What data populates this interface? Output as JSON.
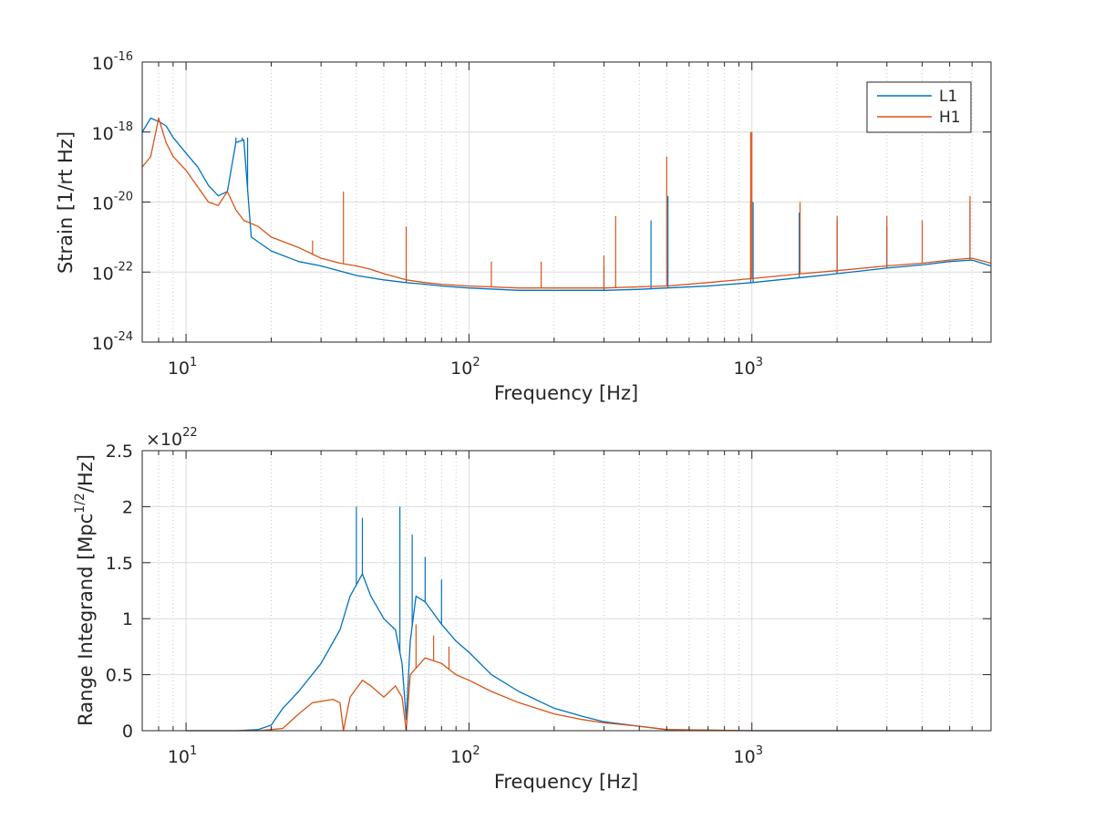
{
  "chart_data": [
    {
      "type": "line",
      "xlabel": "Frequency [Hz]",
      "ylabel": "Strain [1/rt Hz]",
      "xscale": "log",
      "yscale": "log",
      "xlim": [
        7,
        7000
      ],
      "ylim": [
        1e-24,
        1e-16
      ],
      "grid": true,
      "legend_position": "top-right",
      "x_ticks": [
        {
          "value": 10,
          "base": "10",
          "exp": "1"
        },
        {
          "value": 100,
          "base": "10",
          "exp": "2"
        },
        {
          "value": 1000,
          "base": "10",
          "exp": "3"
        }
      ],
      "y_ticks": [
        {
          "value": 1e-24,
          "base": "10",
          "exp": "-24"
        },
        {
          "value": 1e-22,
          "base": "10",
          "exp": "-22"
        },
        {
          "value": 1e-20,
          "base": "10",
          "exp": "-20"
        },
        {
          "value": 1e-18,
          "base": "10",
          "exp": "-18"
        },
        {
          "value": 1e-16,
          "base": "10",
          "exp": "-16"
        }
      ],
      "series": [
        {
          "name": "L1",
          "color": "#0072BD",
          "points": [
            [
              7,
              1e-18
            ],
            [
              7.5,
              2.5e-18
            ],
            [
              8,
              2e-18
            ],
            [
              8.5,
              1.5e-18
            ],
            [
              9,
              7e-19
            ],
            [
              10,
              2.5e-19
            ],
            [
              11,
              1e-19
            ],
            [
              12,
              3e-20
            ],
            [
              13,
              1.5e-20
            ],
            [
              14,
              2e-20
            ],
            [
              15,
              5e-19
            ],
            [
              16,
              6e-19
            ],
            [
              17,
              1e-21
            ],
            [
              20,
              4e-22
            ],
            [
              25,
              2e-22
            ],
            [
              30,
              1.5e-22
            ],
            [
              40,
              8e-23
            ],
            [
              50,
              6e-23
            ],
            [
              60,
              5e-23
            ],
            [
              70,
              4.5e-23
            ],
            [
              80,
              4e-23
            ],
            [
              100,
              3.5e-23
            ],
            [
              150,
              3e-23
            ],
            [
              200,
              3e-23
            ],
            [
              300,
              3e-23
            ],
            [
              400,
              3.2e-23
            ],
            [
              500,
              3.5e-23
            ],
            [
              700,
              4e-23
            ],
            [
              1000,
              5e-23
            ],
            [
              1500,
              7e-23
            ],
            [
              2000,
              9e-23
            ],
            [
              3000,
              1.3e-22
            ],
            [
              4000,
              1.6e-22
            ],
            [
              5000,
              2e-22
            ],
            [
              6000,
              2.2e-22
            ],
            [
              7000,
              1.5e-22
            ]
          ],
          "peaks": [
            [
              15,
              7e-19
            ],
            [
              15.8,
              7e-19
            ],
            [
              16.5,
              7e-19
            ],
            [
              60,
              1e-22
            ],
            [
              300,
              1.5e-22
            ],
            [
              440,
              3e-21
            ],
            [
              505,
              1.5e-20
            ],
            [
              990,
              1e-20
            ],
            [
              1010,
              1e-20
            ],
            [
              1470,
              5e-21
            ],
            [
              2000,
              3e-21
            ],
            [
              3000,
              2e-21
            ],
            [
              5900,
              1e-20
            ]
          ]
        },
        {
          "name": "H1",
          "color": "#D95319",
          "points": [
            [
              7,
              1e-19
            ],
            [
              7.5,
              2e-19
            ],
            [
              8,
              2.5e-18
            ],
            [
              8.5,
              5e-19
            ],
            [
              9,
              2e-19
            ],
            [
              10,
              8e-20
            ],
            [
              12,
              1e-20
            ],
            [
              13,
              8e-21
            ],
            [
              14,
              2e-20
            ],
            [
              15,
              6e-21
            ],
            [
              16,
              3e-21
            ],
            [
              18,
              2e-21
            ],
            [
              20,
              1e-21
            ],
            [
              25,
              5e-22
            ],
            [
              30,
              2.5e-22
            ],
            [
              35,
              1.8e-22
            ],
            [
              40,
              1.5e-22
            ],
            [
              45,
              1.2e-22
            ],
            [
              50,
              9e-23
            ],
            [
              60,
              6e-23
            ],
            [
              70,
              5e-23
            ],
            [
              80,
              4.5e-23
            ],
            [
              100,
              4e-23
            ],
            [
              150,
              3.5e-23
            ],
            [
              200,
              3.5e-23
            ],
            [
              300,
              3.5e-23
            ],
            [
              500,
              4e-23
            ],
            [
              700,
              5e-23
            ],
            [
              1000,
              6.5e-23
            ],
            [
              1500,
              9e-23
            ],
            [
              2000,
              1.1e-22
            ],
            [
              3000,
              1.5e-22
            ],
            [
              4000,
              1.8e-22
            ],
            [
              5000,
              2.2e-22
            ],
            [
              6000,
              2.5e-22
            ],
            [
              7000,
              1.8e-22
            ]
          ],
          "peaks": [
            [
              28,
              8e-22
            ],
            [
              36,
              2e-20
            ],
            [
              60,
              2e-21
            ],
            [
              120,
              2e-22
            ],
            [
              180,
              2e-22
            ],
            [
              300,
              3e-22
            ],
            [
              330,
              4e-21
            ],
            [
              500,
              2e-19
            ],
            [
              990,
              1e-18
            ],
            [
              1000,
              1e-18
            ],
            [
              1480,
              1e-20
            ],
            [
              2000,
              4e-21
            ],
            [
              3000,
              4e-21
            ],
            [
              4000,
              3e-21
            ],
            [
              5900,
              1.5e-20
            ]
          ]
        }
      ]
    },
    {
      "type": "line",
      "xlabel": "Frequency [Hz]",
      "ylabel_main": "Range Integrand [Mpc",
      "ylabel_sup": "1/2",
      "ylabel_tail": "/Hz]",
      "xscale": "log",
      "xlim": [
        7,
        7000
      ],
      "ylim": [
        0,
        2.5e+22
      ],
      "grid": true,
      "multiplier_prefix": "×10",
      "multiplier_exp": "22",
      "x_ticks": [
        {
          "value": 10,
          "base": "10",
          "exp": "1"
        },
        {
          "value": 100,
          "base": "10",
          "exp": "2"
        },
        {
          "value": 1000,
          "base": "10",
          "exp": "3"
        }
      ],
      "y_ticks": [
        {
          "value": 0,
          "label": "0"
        },
        {
          "value": 5e+21,
          "label": "0.5"
        },
        {
          "value": 1e+22,
          "label": "1"
        },
        {
          "value": 1.5e+22,
          "label": "1.5"
        },
        {
          "value": 2e+22,
          "label": "2"
        },
        {
          "value": 2.5e+22,
          "label": "2.5"
        }
      ],
      "series": [
        {
          "name": "L1",
          "color": "#0072BD",
          "points": [
            [
              10,
              0
            ],
            [
              15,
              0
            ],
            [
              18,
              1e+20
            ],
            [
              20,
              5e+20
            ],
            [
              22,
              2e+21
            ],
            [
              25,
              3.5e+21
            ],
            [
              30,
              6e+21
            ],
            [
              35,
              9e+21
            ],
            [
              38,
              1.2e+22
            ],
            [
              42,
              1.4e+22
            ],
            [
              45,
              1.2e+22
            ],
            [
              50,
              1e+22
            ],
            [
              55,
              9e+21
            ],
            [
              58,
              6e+21
            ],
            [
              60,
              1e+21
            ],
            [
              62,
              8e+21
            ],
            [
              65,
              1.2e+22
            ],
            [
              70,
              1.15e+22
            ],
            [
              80,
              9.5e+21
            ],
            [
              90,
              8e+21
            ],
            [
              100,
              7e+21
            ],
            [
              120,
              5e+21
            ],
            [
              150,
              3.5e+21
            ],
            [
              200,
              2e+21
            ],
            [
              250,
              1.3e+21
            ],
            [
              300,
              8e+20
            ],
            [
              400,
              4e+20
            ],
            [
              500,
              1e+20
            ],
            [
              700,
              5e+19
            ],
            [
              1000,
              0
            ],
            [
              5000,
              0
            ]
          ],
          "spikes": [
            [
              40,
              2e+22
            ],
            [
              42,
              1.9e+22
            ],
            [
              57,
              2e+22
            ],
            [
              63,
              1.75e+22
            ],
            [
              70,
              1.55e+22
            ],
            [
              80,
              1.35e+22
            ]
          ]
        },
        {
          "name": "H1",
          "color": "#D95319",
          "points": [
            [
              10,
              0
            ],
            [
              18,
              0
            ],
            [
              22,
              2e+20
            ],
            [
              25,
              1.5e+21
            ],
            [
              28,
              2.5e+21
            ],
            [
              33,
              2.8e+21
            ],
            [
              35,
              2.5e+21
            ],
            [
              36,
              0
            ],
            [
              38,
              3e+21
            ],
            [
              42,
              4.5e+21
            ],
            [
              45,
              4e+21
            ],
            [
              50,
              3e+21
            ],
            [
              55,
              4e+21
            ],
            [
              58,
              3e+21
            ],
            [
              60,
              0
            ],
            [
              62,
              5e+21
            ],
            [
              70,
              6.5e+21
            ],
            [
              80,
              6e+21
            ],
            [
              90,
              5e+21
            ],
            [
              100,
              4.5e+21
            ],
            [
              120,
              3.5e+21
            ],
            [
              150,
              2.5e+21
            ],
            [
              200,
              1.5e+21
            ],
            [
              250,
              1e+21
            ],
            [
              300,
              7e+20
            ],
            [
              400,
              4e+20
            ],
            [
              500,
              1e+20
            ],
            [
              1000,
              0
            ],
            [
              5000,
              0
            ]
          ],
          "spikes": [
            [
              65,
              9.5e+21
            ],
            [
              75,
              8.5e+21
            ],
            [
              85,
              7.5e+21
            ]
          ]
        }
      ]
    }
  ]
}
